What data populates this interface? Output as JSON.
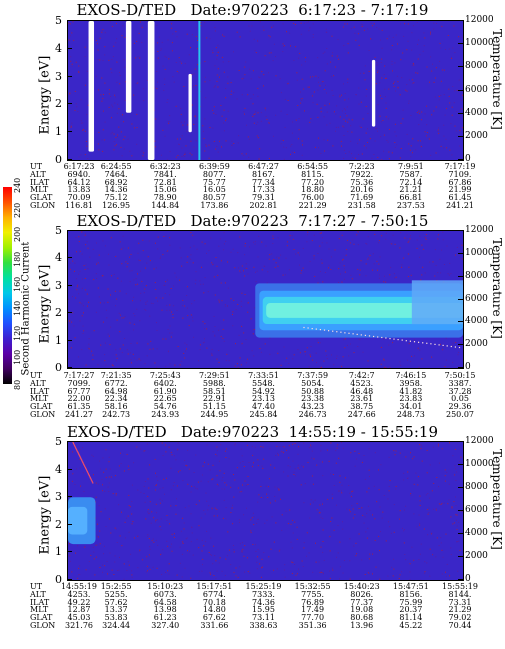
{
  "colorbar": {
    "label": "Second Harmonic Current",
    "ticks": [
      "80",
      "100",
      "120",
      "140",
      "160",
      "180",
      "200",
      "220",
      "240"
    ],
    "colors": [
      "#000000",
      "#400060",
      "#5a00a8",
      "#3c20d0",
      "#2050ff",
      "#0090ff",
      "#00c8e8",
      "#00e0a0",
      "#30e040",
      "#a0f000",
      "#f0f000",
      "#ffb000",
      "#ff5000",
      "#ff0000"
    ]
  },
  "panels": [
    {
      "title": "EXOS-D/TED   Date:970223  6:17:23 - 7:17:19",
      "ylabel_left": "Energy [eV]",
      "ylabel_right": "Temperature [K]",
      "yticks_left": [
        "5",
        "4",
        "3",
        "2",
        "1",
        "0"
      ],
      "yticks_right": [
        "12000",
        "10000",
        "8000",
        "6000",
        "4000",
        "2000",
        "0"
      ],
      "table": {
        "labels": [
          "UT",
          "ALT",
          "ILAT",
          "MLT",
          "GLAT",
          "GLON"
        ],
        "columns": [
          [
            "6:17:23",
            "6940.",
            "64.12",
            "13.83",
            "70.09",
            "116.81"
          ],
          [
            "6:24:55",
            "7464.",
            "68.92",
            "14.36",
            "75.12",
            "126.95"
          ],
          [
            "6:32:23",
            "7841.",
            "72.81",
            "15.06",
            "78.90",
            "144.84"
          ],
          [
            "6:39:59",
            "8077.",
            "75.77",
            "16.05",
            "80.57",
            "173.86"
          ],
          [
            "6:47:27",
            "8167.",
            "77.34",
            "17.33",
            "79.31",
            "202.81"
          ],
          [
            "6:54:55",
            "8115.",
            "77.20",
            "18.80",
            "76.00",
            "221.29"
          ],
          [
            "7:2:23",
            "7922.",
            "75.36",
            "20.16",
            "71.69",
            "231.58"
          ],
          [
            "7:9:51",
            "7587.",
            "72.14",
            "21.21",
            "66.81",
            "237.53"
          ],
          [
            "7:17:19",
            "7109.",
            "67.86",
            "21.99",
            "61.45",
            "241.21"
          ]
        ]
      }
    },
    {
      "title": "EXOS-D/TED   Date:970223  7:17:27 - 7:50:15",
      "ylabel_left": "Energy [eV]",
      "ylabel_right": "Temperature [K]",
      "yticks_left": [
        "5",
        "4",
        "3",
        "2",
        "1",
        "0"
      ],
      "yticks_right": [
        "12000",
        "10000",
        "8000",
        "6000",
        "4000",
        "2000",
        "0"
      ],
      "table": {
        "labels": [
          "UT",
          "ALT",
          "ILAT",
          "MLT",
          "GLAT",
          "GLON"
        ],
        "columns": [
          [
            "7:17:27",
            "7099.",
            "67.77",
            "22.00",
            "61.35",
            "241.27"
          ],
          [
            "7:21:35",
            "6772.",
            "64.98",
            "22.34",
            "58.16",
            "242.73"
          ],
          [
            "7:25:43",
            "6402.",
            "61.90",
            "22.65",
            "54.76",
            "243.93"
          ],
          [
            "7:29:51",
            "5988.",
            "58.51",
            "22.91",
            "51.15",
            "244.95"
          ],
          [
            "7:33:51",
            "5548.",
            "54.92",
            "23.13",
            "47.40",
            "245.84"
          ],
          [
            "7:37:59",
            "5054.",
            "50.88",
            "23.38",
            "43.23",
            "246.73"
          ],
          [
            "7:42:7",
            "4523.",
            "46.48",
            "23.61",
            "38.75",
            "247.66"
          ],
          [
            "7:46:15",
            "3958.",
            "41.82",
            "23.83",
            "34.01",
            "248.73"
          ],
          [
            "7:50:15",
            "3387.",
            "37.28",
            "0.05",
            "29.36",
            "250.07"
          ]
        ]
      }
    },
    {
      "title": "EXOS-D/TED   Date:970223  14:55:19 - 15:55:19",
      "ylabel_left": "Energy [eV]",
      "ylabel_right": "Temperature [K]",
      "yticks_left": [
        "5",
        "4",
        "3",
        "2",
        "1",
        "0"
      ],
      "yticks_right": [
        "12000",
        "10000",
        "8000",
        "6000",
        "4000",
        "2000",
        "0"
      ],
      "table": {
        "labels": [
          "UT",
          "ALT",
          "ILAT",
          "MLT",
          "GLAT",
          "GLON"
        ],
        "columns": [
          [
            "14:55:19",
            "4253.",
            "49.22",
            "12.87",
            "45.03",
            "321.76"
          ],
          [
            "15:2:55",
            "5255.",
            "57.62",
            "13.37",
            "53.83",
            "324.44"
          ],
          [
            "15:10:23",
            "6073.",
            "64.58",
            "13.98",
            "61.23",
            "327.40"
          ],
          [
            "15:17:51",
            "6774.",
            "70.18",
            "14.80",
            "67.62",
            "331.66"
          ],
          [
            "15:25:19",
            "7333.",
            "74.36",
            "15.95",
            "73.11",
            "338.63"
          ],
          [
            "15:32:55",
            "7755.",
            "76.89",
            "17.49",
            "77.70",
            "351.36"
          ],
          [
            "15:40:23",
            "8026.",
            "77.37",
            "19.08",
            "80.68",
            "13.96"
          ],
          [
            "15:47:51",
            "8156.",
            "75.99",
            "20.37",
            "81.14",
            "45.22"
          ],
          [
            "15:55:19",
            "8144.",
            "73.31",
            "21.29",
            "79.02",
            "70.44"
          ]
        ]
      }
    }
  ],
  "chart_data": [
    {
      "type": "heatmap",
      "title": "EXOS-D/TED   Date:970223  6:17:23 - 7:17:19",
      "xlabel": "UT",
      "ylabel": "Energy [eV]",
      "ylabel_right": "Temperature [K]",
      "x_ticks": [
        "6:17:23",
        "6:24:55",
        "6:32:23",
        "6:39:59",
        "6:47:27",
        "6:54:55",
        "7:2:23",
        "7:9:51",
        "7:17:19"
      ],
      "ylim": [
        0,
        5
      ],
      "ylim_right": [
        0,
        12000
      ],
      "background_level": "low (blue, ~100-120)",
      "features": [
        {
          "kind": "no-data (white)",
          "ut_start": "6:20:30",
          "ut_end": "6:21:20",
          "energy": [
            0.3,
            5
          ]
        },
        {
          "kind": "no-data (white)",
          "ut_start": "6:26:10",
          "ut_end": "6:27:00",
          "energy": [
            1.7,
            5
          ]
        },
        {
          "kind": "no-data (white)",
          "ut_start": "6:29:30",
          "ut_end": "6:30:30",
          "energy": [
            0,
            5
          ]
        },
        {
          "kind": "no-data (white)",
          "ut_start": "6:35:40",
          "ut_end": "6:36:10",
          "energy": [
            1.0,
            3.1
          ]
        },
        {
          "kind": "high (cyan line)",
          "ut_start": "6:37:10",
          "ut_end": "6:37:25",
          "energy": [
            0,
            5
          ]
        },
        {
          "kind": "no-data (white)",
          "ut_start": "7:3:30",
          "ut_end": "7:4:00",
          "energy": [
            1.2,
            3.6
          ]
        }
      ]
    },
    {
      "type": "heatmap",
      "title": "EXOS-D/TED   Date:970223  7:17:27 - 7:50:15",
      "xlabel": "UT",
      "ylabel": "Energy [eV]",
      "ylabel_right": "Temperature [K]",
      "x_ticks": [
        "7:17:27",
        "7:21:35",
        "7:25:43",
        "7:29:51",
        "7:33:51",
        "7:37:59",
        "7:42:7",
        "7:46:15",
        "7:50:15"
      ],
      "ylim": [
        0,
        5
      ],
      "ylim_right": [
        0,
        12000
      ],
      "features": [
        {
          "kind": "enhanced band (cyan/light blue)",
          "ut_start": "7:33:00",
          "ut_end": "7:50:15",
          "energy_center": 2.1,
          "energy_halfwidth": 0.45
        },
        {
          "kind": "enhanced broad (light blue)",
          "ut_start": "7:46:00",
          "ut_end": "7:50:15",
          "energy": [
            1.6,
            3.2
          ]
        },
        {
          "kind": "temperature trace (white dots)",
          "ut_start": "7:37:00",
          "ut_end": "7:50:15",
          "temperature_K": [
            3600,
            1800
          ]
        }
      ]
    },
    {
      "type": "heatmap",
      "title": "EXOS-D/TED   Date:970223  14:55:19 - 15:55:19",
      "xlabel": "UT",
      "ylabel": "Energy [eV]",
      "ylabel_right": "Temperature [K]",
      "x_ticks": [
        "14:55:19",
        "15:2:55",
        "15:10:23",
        "15:17:51",
        "15:25:19",
        "15:32:55",
        "15:40:23",
        "15:47:51",
        "15:55:19"
      ],
      "ylim": [
        0,
        5
      ],
      "ylim_right": [
        0,
        12000
      ],
      "features": [
        {
          "kind": "enhanced (light blue)",
          "ut_start": "14:55:19",
          "ut_end": "14:59:30",
          "energy": [
            1.3,
            3.0
          ]
        },
        {
          "kind": "temperature trace (red dots)",
          "ut_start": "14:56:00",
          "ut_end": "14:59:00",
          "temperature_K": [
            12000,
            8500
          ]
        }
      ]
    }
  ]
}
